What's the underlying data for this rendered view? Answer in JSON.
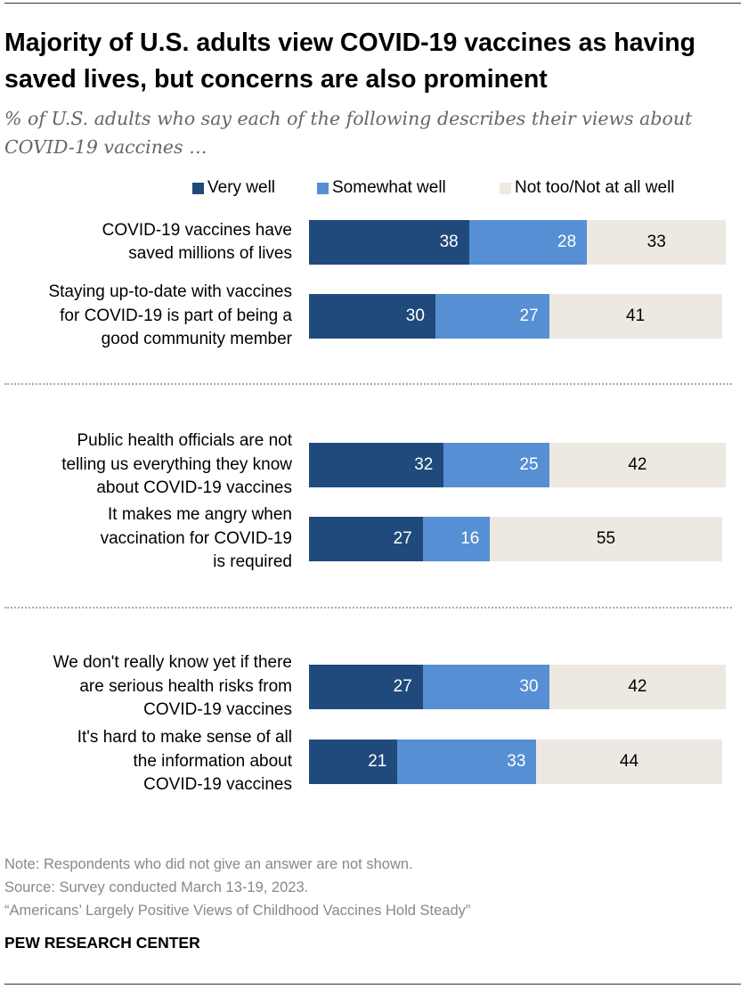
{
  "title": "Majority of U.S. adults view COVID-19 vaccines as having saved lives, but concerns are also prominent",
  "subtitle": "% of U.S. adults who say each of the following describes their views about COVID-19 vaccines …",
  "colors": {
    "very_well": "#204a7c",
    "somewhat_well": "#568fd3",
    "not_well": "#ede9e2"
  },
  "chart_data": {
    "type": "bar",
    "orientation": "horizontal-stacked",
    "title": "Majority of U.S. adults view COVID-19 vaccines as having saved lives, but concerns are also prominent",
    "legend": [
      "Very well",
      "Somewhat well",
      "Not too/Not at all well"
    ],
    "legend_placement": "top-right",
    "xlim": [
      0,
      100
    ],
    "categories": [
      "COVID-19 vaccines have saved millions of lives",
      "Staying up-to-date with vaccines for COVID-19 is part of being a good community member",
      "Public health officials are not telling us everything they know about COVID-19 vaccines",
      "It makes me angry when vaccination for COVID-19 is required",
      "We don't really know yet if there are serious health risks from COVID-19 vaccines",
      "It's hard to make sense of all the information about COVID-19 vaccines"
    ],
    "label_lines": [
      [
        "COVID-19 vaccines have",
        "saved millions of lives"
      ],
      [
        "Staying up-to-date with vaccines",
        "for COVID-19 is part of being a",
        "good community member"
      ],
      [
        "Public health officials are not",
        "telling us everything they know",
        "about COVID-19 vaccines"
      ],
      [
        "It makes me angry when",
        "vaccination for COVID-19",
        "is required"
      ],
      [
        "We don't really know yet if there",
        "are serious health risks from",
        "COVID-19 vaccines"
      ],
      [
        "It's hard to make sense of all",
        "the information about",
        "COVID-19 vaccines"
      ]
    ],
    "series": [
      {
        "name": "Very well",
        "values": [
          38,
          30,
          32,
          27,
          27,
          21
        ]
      },
      {
        "name": "Somewhat well",
        "values": [
          28,
          27,
          25,
          16,
          30,
          33
        ]
      },
      {
        "name": "Not too/Not at all well",
        "values": [
          33,
          41,
          42,
          55,
          42,
          44
        ]
      }
    ]
  },
  "notes": {
    "note": "Note: Respondents who did not give an answer are not shown.",
    "source": "Source: Survey conducted March 13-19, 2023.",
    "report": "“Americans’ Largely Positive Views of Childhood Vaccines Hold Steady”"
  },
  "brand": "PEW RESEARCH CENTER"
}
